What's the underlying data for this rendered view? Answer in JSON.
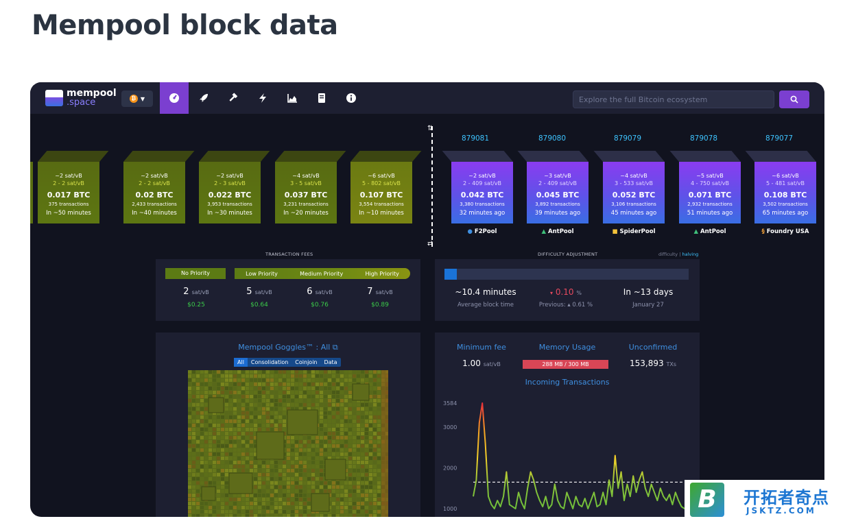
{
  "page": {
    "title": "Mempool block data"
  },
  "navbar": {
    "logo_line1": "mempool",
    "logo_line2": ".space",
    "network": "bitcoin",
    "items": [
      "dashboard",
      "rocket",
      "mining",
      "lightning",
      "graphs",
      "docs",
      "about"
    ],
    "search_placeholder": "Explore the full Bitcoin ecosystem"
  },
  "mempool_blocks": [
    {
      "fee": "~2 sat/vB",
      "range": "2 - 2 sat/vB",
      "btc": "0.017 BTC",
      "txs": "375 transactions",
      "eta": "In ~50 minutes"
    },
    {
      "fee": "~2 sat/vB",
      "range": "2 - 2 sat/vB",
      "btc": "0.02 BTC",
      "txs": "2,433 transactions",
      "eta": "In ~40 minutes"
    },
    {
      "fee": "~2 sat/vB",
      "range": "2 - 3 sat/vB",
      "btc": "0.022 BTC",
      "txs": "3,953 transactions",
      "eta": "In ~30 minutes"
    },
    {
      "fee": "~4 sat/vB",
      "range": "3 - 5 sat/vB",
      "btc": "0.037 BTC",
      "txs": "3,231 transactions",
      "eta": "In ~20 minutes"
    },
    {
      "fee": "~6 sat/vB",
      "range": "5 - 802 sat/vB",
      "btc": "0.107 BTC",
      "txs": "3,554 transactions",
      "eta": "In ~10 minutes"
    }
  ],
  "chain_blocks": [
    {
      "height": "879081",
      "fee": "~2 sat/vB",
      "range": "2 - 409 sat/vB",
      "btc": "0.042 BTC",
      "txs": "3,380 transactions",
      "age": "32 minutes ago",
      "pool": "F2Pool"
    },
    {
      "height": "879080",
      "fee": "~3 sat/vB",
      "range": "2 - 409 sat/vB",
      "btc": "0.045 BTC",
      "txs": "3,892 transactions",
      "age": "39 minutes ago",
      "pool": "AntPool"
    },
    {
      "height": "879079",
      "fee": "~4 sat/vB",
      "range": "3 - 533 sat/vB",
      "btc": "0.052 BTC",
      "txs": "3,106 transactions",
      "age": "45 minutes ago",
      "pool": "SpiderPool"
    },
    {
      "height": "879078",
      "fee": "~5 sat/vB",
      "range": "4 - 750 sat/vB",
      "btc": "0.071 BTC",
      "txs": "2,932 transactions",
      "age": "51 minutes ago",
      "pool": "AntPool"
    },
    {
      "height": "879077",
      "fee": "~6 sat/vB",
      "range": "5 - 481 sat/vB",
      "btc": "0.108 BTC",
      "txs": "3,502 transactions",
      "age": "65 minutes ago",
      "pool": "Foundry USA"
    }
  ],
  "fees": {
    "title": "TRANSACTION FEES",
    "labels": [
      "No Priority",
      "Low Priority",
      "Medium Priority",
      "High Priority"
    ],
    "values": [
      "2",
      "5",
      "6",
      "7"
    ],
    "unit": "sat/vB",
    "usd": [
      "$0.25",
      "$0.64",
      "$0.76",
      "$0.89"
    ]
  },
  "difficulty": {
    "title": "DIFFICULTY ADJUSTMENT",
    "toggle_a": "difficulty",
    "toggle_sep": "|",
    "toggle_b": "halving",
    "progress": 0.05,
    "block_time": "~10.4 minutes",
    "block_time_label": "Average block time",
    "change_prefix": "▾",
    "change": "0.10",
    "change_unit": "%",
    "previous": "Previous: ▴ 0.61 %",
    "eta": "In ~13 days",
    "date": "January 27"
  },
  "goggles": {
    "title": "Mempool Goggles™ : All",
    "tabs": [
      "All",
      "Consolidation",
      "Coinjoin",
      "Data"
    ]
  },
  "stats": {
    "min_fee_label": "Minimum fee",
    "min_fee": "1.00",
    "min_fee_unit": "sat/vB",
    "memory_label": "Memory Usage",
    "memory": "288 MB / 300 MB",
    "memory_fraction": 0.96,
    "unconfirmed_label": "Unconfirmed",
    "unconfirmed": "153,893",
    "unconfirmed_unit": "TXs"
  },
  "chart_data": {
    "type": "line",
    "title": "Incoming Transactions",
    "ylim": [
      900,
      3584
    ],
    "y_ticks": [
      "3584",
      "3000",
      "2000",
      "1000"
    ],
    "threshold": 1650,
    "values": [
      1300,
      1700,
      3100,
      3584,
      2600,
      1300,
      1100,
      1000,
      1200,
      1050,
      1300,
      1900,
      1100,
      1050,
      1000,
      1400,
      1150,
      1000,
      1500,
      1900,
      1700,
      1400,
      1200,
      1050,
      1300,
      1000,
      1100,
      1600,
      1200,
      1050,
      1000,
      1400,
      1200,
      1000,
      1300,
      1100,
      1050,
      1250,
      1000,
      1200,
      1400,
      1050,
      1100,
      1400,
      1100,
      1700,
      1300,
      2300,
      1500,
      1900,
      1200,
      1600,
      1300,
      1800,
      1400,
      1700,
      1900,
      1500,
      1300,
      1600,
      1400,
      1200,
      1500,
      1300,
      1200,
      1350,
      1100,
      1400,
      1200,
      1050,
      1000
    ]
  },
  "badge": {
    "line1": "开拓者奇点",
    "line2": "JSKTZ.COM",
    "letter": "B"
  }
}
